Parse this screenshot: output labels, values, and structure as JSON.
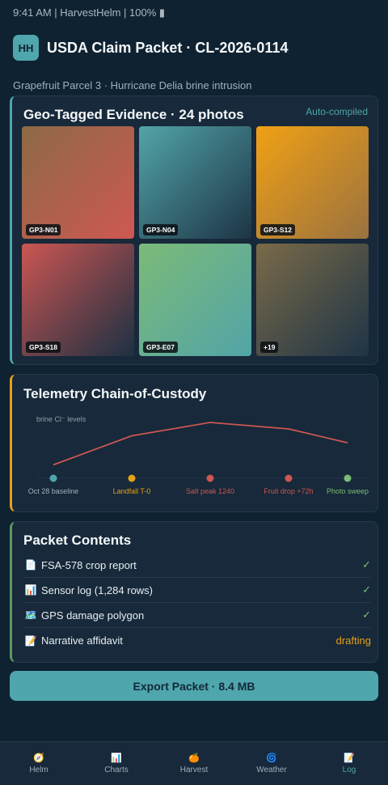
{
  "status_bar": {
    "text": "9:41 AM | HarvestHelm | 100% ▮"
  },
  "header": {
    "logo": "HH",
    "title": "USDA Claim Packet · CL-2026-0114"
  },
  "subtitle": "Grapefruit Parcel 3 · Hurricane Delia brine intrusion",
  "evidence": {
    "title": "Geo-Tagged Evidence · 24 photos",
    "tag": "Auto-compiled",
    "photos": [
      {
        "label": "GP3-N01",
        "from": "#8c6a46",
        "to": "#cf5852"
      },
      {
        "label": "GP3-N04",
        "from": "#52a4a8",
        "to": "#1d3446"
      },
      {
        "label": "GP3-S12",
        "from": "#f0a014",
        "to": "#9a7240"
      },
      {
        "label": "GP3-S18",
        "from": "#cc5652",
        "to": "#1c3042"
      },
      {
        "label": "GP3-E07",
        "from": "#7cba78",
        "to": "#52a4a8"
      },
      {
        "label": "+19",
        "from": "#7b6a48",
        "to": "#1e3446"
      }
    ]
  },
  "telemetry": {
    "title": "Telemetry Chain-of-Custody",
    "y_label": "brine Cl⁻ levels",
    "points": [
      {
        "label": "Oct 28 baseline",
        "color": "#4fa6ac",
        "label_color": "#9fb0bc",
        "level": 0.08
      },
      {
        "label": "Landfall T-0",
        "color": "#e6a017",
        "label_color": "#e6a017",
        "level": 0.71
      },
      {
        "label": "Salt peak 1240",
        "color": "#cc5652",
        "label_color": "#cc5652",
        "level": 1.0
      },
      {
        "label": "Fruit drop +72h",
        "color": "#cc5652",
        "label_color": "#cc5652",
        "level": 0.86
      },
      {
        "label": "Photo sweep",
        "color": "#7cba78",
        "label_color": "#7cba78",
        "level": 0.56
      }
    ]
  },
  "contents": {
    "title": "Packet Contents",
    "items": [
      {
        "icon": "📄",
        "icon_name": "document-icon",
        "label": "FSA-578 crop report",
        "status": "✓",
        "status_color": "#7cba78"
      },
      {
        "icon": "📊",
        "icon_name": "bar-chart-icon",
        "label": "Sensor log (1,284 rows)",
        "status": "✓",
        "status_color": "#7cba78"
      },
      {
        "icon": "🗺️",
        "icon_name": "map-icon",
        "label": "GPS damage polygon",
        "status": "✓",
        "status_color": "#7cba78"
      },
      {
        "icon": "📝",
        "icon_name": "memo-icon",
        "label": "Narrative affidavit",
        "status": "drafting",
        "status_color": "#e6a017"
      }
    ]
  },
  "export_button": "Export Packet · 8.4 MB",
  "nav": {
    "items": [
      {
        "icon": "🧭",
        "icon_name": "compass-icon",
        "label": "Helm",
        "active": false
      },
      {
        "icon": "📊",
        "icon_name": "bar-chart-icon",
        "label": "Charts",
        "active": false
      },
      {
        "icon": "🍊",
        "icon_name": "citrus-icon",
        "label": "Harvest",
        "active": false
      },
      {
        "icon": "🌀",
        "icon_name": "cyclone-icon",
        "label": "Weather",
        "active": false
      },
      {
        "icon": "📝",
        "icon_name": "memo-icon",
        "label": "Log",
        "active": true
      }
    ]
  }
}
